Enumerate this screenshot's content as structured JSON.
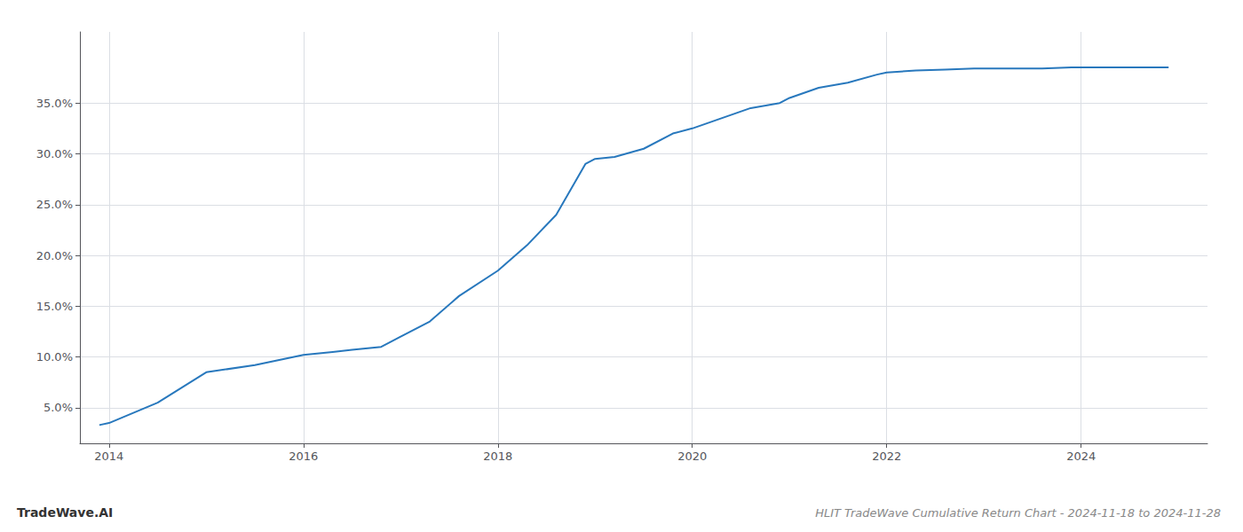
{
  "chart_data": {
    "type": "line",
    "title": "HLIT TradeWave Cumulative Return Chart - 2024-11-18 to 2024-11-28",
    "annotations": [
      "TradeWave.AI"
    ],
    "x": [
      2013.9,
      2014.0,
      2014.5,
      2015.0,
      2015.5,
      2016.0,
      2016.3,
      2016.5,
      2016.8,
      2017.0,
      2017.3,
      2017.6,
      2018.0,
      2018.3,
      2018.6,
      2018.9,
      2019.0,
      2019.2,
      2019.5,
      2019.8,
      2020.0,
      2020.3,
      2020.6,
      2020.9,
      2021.0,
      2021.3,
      2021.6,
      2021.9,
      2022.0,
      2022.3,
      2022.6,
      2022.9,
      2023.0,
      2023.3,
      2023.6,
      2023.9,
      2024.0,
      2024.3,
      2024.6,
      2024.9
    ],
    "values": [
      3.3,
      3.5,
      5.5,
      8.5,
      9.2,
      10.2,
      10.5,
      10.7,
      11.0,
      12.0,
      13.5,
      16.0,
      18.5,
      21.0,
      24.0,
      29.0,
      29.5,
      29.7,
      30.5,
      32.0,
      32.5,
      33.5,
      34.5,
      35.0,
      35.5,
      36.5,
      37.0,
      37.8,
      38.0,
      38.2,
      38.3,
      38.4,
      38.4,
      38.4,
      38.4,
      38.5,
      38.5,
      38.5,
      38.5,
      38.5
    ],
    "color": "#2878bd",
    "xlim": [
      2013.7,
      2025.3
    ],
    "xticks": [
      2014,
      2016,
      2018,
      2020,
      2022,
      2024
    ],
    "ylim": [
      1.5,
      42.0
    ],
    "yticks": [
      {
        "value": 5.0,
        "label": "5.0%"
      },
      {
        "value": 10.0,
        "label": "10.0%"
      },
      {
        "value": 15.0,
        "label": "15.0%"
      },
      {
        "value": 20.0,
        "label": "20.0%"
      },
      {
        "value": 25.0,
        "label": "25.0%"
      },
      {
        "value": 30.0,
        "label": "30.0%"
      },
      {
        "value": 35.0,
        "label": "35.0%"
      }
    ],
    "grid": true
  }
}
